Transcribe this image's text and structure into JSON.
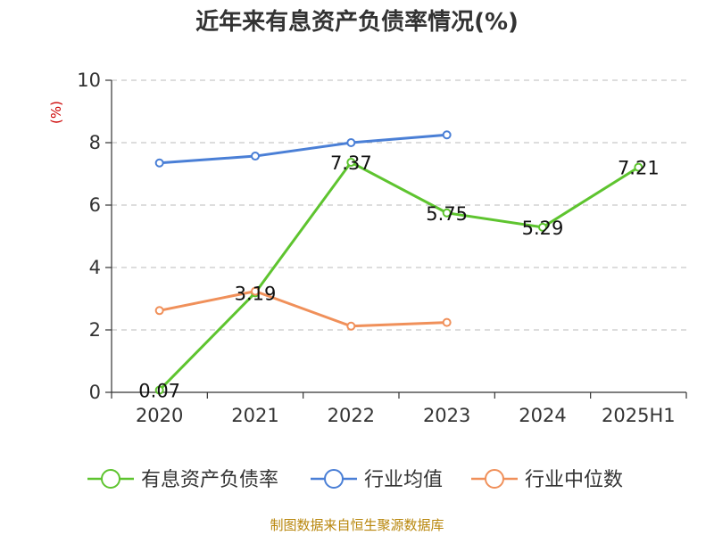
{
  "chart_data": {
    "type": "line",
    "title": "近年来有息资产负债率情况(%)",
    "ylabel": "(%)",
    "xlabel": "",
    "categories": [
      "2020",
      "2021",
      "2022",
      "2023",
      "2024",
      "2025H1"
    ],
    "ylim": [
      0,
      10
    ],
    "yticks": [
      0,
      2,
      4,
      6,
      8,
      10
    ],
    "grid": true,
    "legend_position": "bottom",
    "series": [
      {
        "name": "有息资产负债率",
        "color": "#5ec42f",
        "values": [
          0.07,
          3.19,
          7.37,
          5.75,
          5.29,
          7.21
        ],
        "labels": [
          "0.07",
          "3.19",
          "7.37",
          "5.75",
          "5.29",
          "7.21"
        ]
      },
      {
        "name": "行业均值",
        "color": "#4a7fd6",
        "values": [
          7.35,
          7.57,
          8.0,
          8.25,
          null,
          null
        ]
      },
      {
        "name": "行业中位数",
        "color": "#f0905a",
        "values": [
          2.62,
          3.24,
          2.12,
          2.24,
          null,
          null
        ]
      }
    ],
    "source": "制图数据来自恒生聚源数据库"
  }
}
